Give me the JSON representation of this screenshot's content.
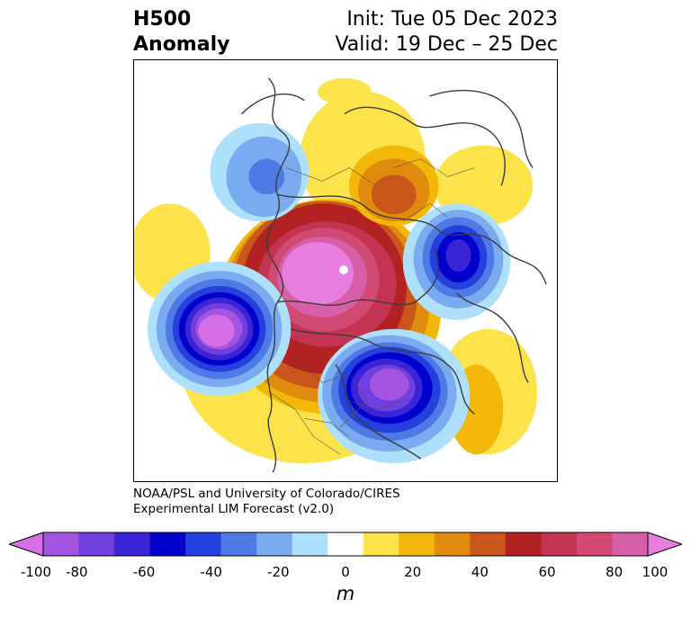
{
  "title": {
    "left_line1": "H500",
    "left_line2": "Anomaly",
    "right_line1": "Init: Tue 05 Dec 2023",
    "right_line2": "Valid: 19 Dec – 25 Dec"
  },
  "credit": {
    "line1": "NOAA/PSL and University of Colorado/CIRES",
    "line2": "Experimental LIM Forecast (v2.0)"
  },
  "colorbar": {
    "unit": "m",
    "bins": [
      -100,
      -90,
      -80,
      -70,
      -60,
      -50,
      -40,
      -30,
      -20,
      -10,
      10,
      20,
      30,
      40,
      50,
      60,
      70,
      80,
      90,
      100
    ],
    "colors": [
      "#d66ee6",
      "#a354e0",
      "#6f3fe0",
      "#3a24d6",
      "#0000cd",
      "#2440dd",
      "#4f7ae6",
      "#7aaaf0",
      "#aee0fb",
      "#ffffff",
      "#fde34b",
      "#f3b70a",
      "#e08b0e",
      "#c9561a",
      "#b22222",
      "#c23451",
      "#d14a73",
      "#d65fa7",
      "#e87de0"
    ],
    "ticks": [
      {
        "value": -100,
        "label": "-100"
      },
      {
        "value": -80,
        "label": "-80"
      },
      {
        "value": -60,
        "label": "-60"
      },
      {
        "value": -40,
        "label": "-40"
      },
      {
        "value": -20,
        "label": "-20"
      },
      {
        "value": 0,
        "label": "0"
      },
      {
        "value": 20,
        "label": "20"
      },
      {
        "value": 40,
        "label": "40"
      },
      {
        "value": 60,
        "label": "60"
      },
      {
        "value": 80,
        "label": "80"
      },
      {
        "value": 100,
        "label": "100"
      }
    ]
  }
}
